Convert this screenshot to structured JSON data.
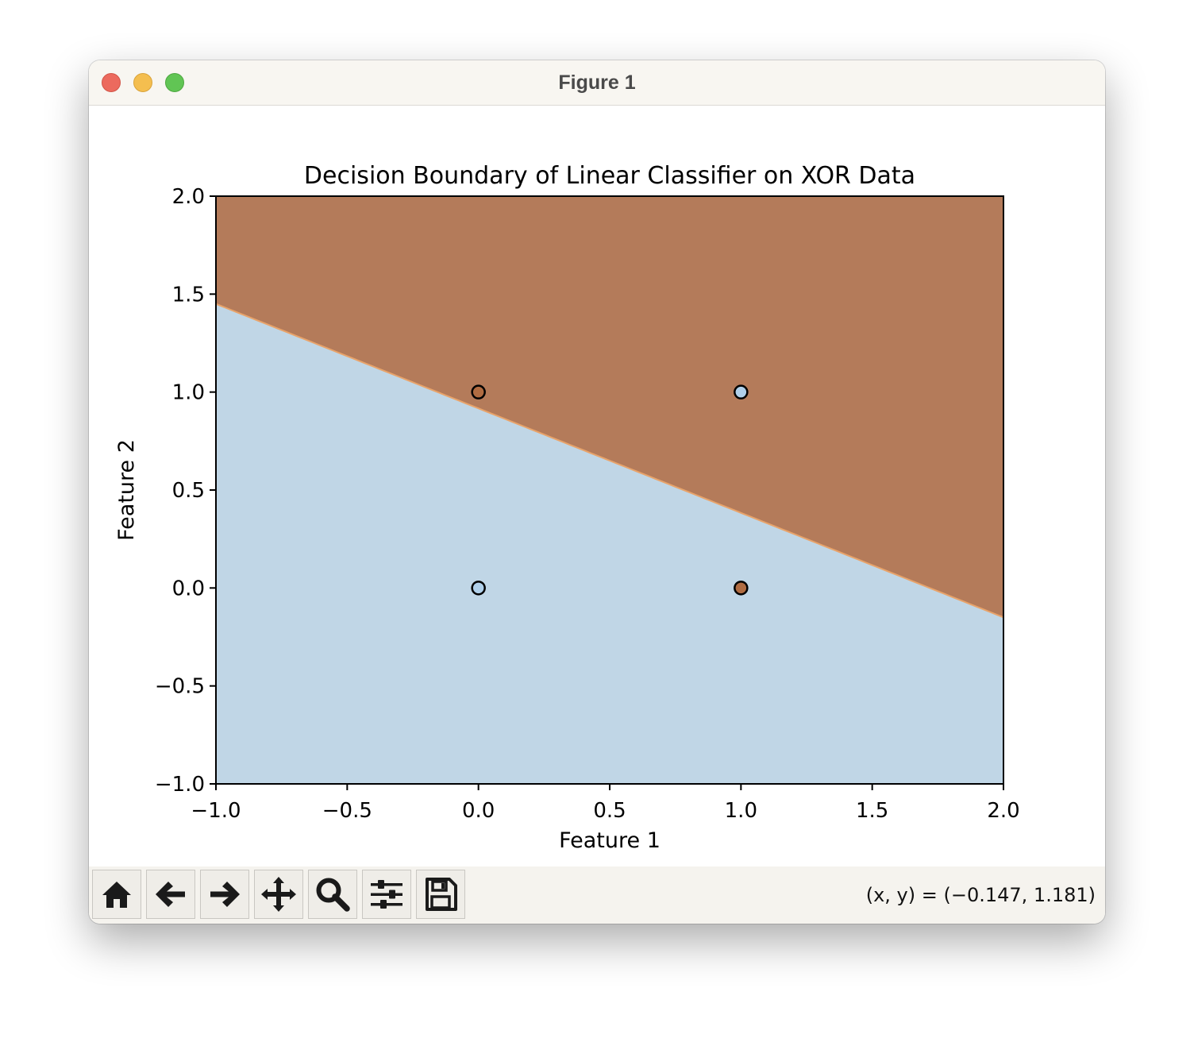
{
  "window": {
    "title": "Figure 1"
  },
  "toolbar": {
    "buttons": [
      {
        "name": "home-button",
        "icon": "home-icon"
      },
      {
        "name": "back-button",
        "icon": "arrow-left-icon"
      },
      {
        "name": "forward-button",
        "icon": "arrow-right-icon"
      },
      {
        "name": "pan-button",
        "icon": "move-icon"
      },
      {
        "name": "zoom-button",
        "icon": "magnifier-icon"
      },
      {
        "name": "configure-subplots-button",
        "icon": "sliders-icon"
      },
      {
        "name": "save-button",
        "icon": "floppy-disk-icon"
      }
    ],
    "coordinates": "(x, y) = (−0.147, 1.181)"
  },
  "colors": {
    "class_0_region": "#c0d6e6",
    "class_1_region": "#b47b5a",
    "class_0_point": "#b0d0ea",
    "class_1_point": "#b06c42",
    "boundary_edge": "#e8a36a"
  },
  "chart_data": {
    "type": "scatter",
    "title": "Decision Boundary of Linear Classifier on XOR Data",
    "xlabel": "Feature 1",
    "ylabel": "Feature 2",
    "xlim": [
      -1.0,
      2.0
    ],
    "ylim": [
      -1.0,
      2.0
    ],
    "xticks": [
      -1.0,
      -0.5,
      0.0,
      0.5,
      1.0,
      1.5,
      2.0
    ],
    "yticks": [
      -1.0,
      -0.5,
      0.0,
      0.5,
      1.0,
      1.5,
      2.0
    ],
    "xtick_labels": [
      "−1.0",
      "−0.5",
      "0.0",
      "0.5",
      "1.0",
      "1.5",
      "2.0"
    ],
    "ytick_labels": [
      "−1.0",
      "−0.5",
      "0.0",
      "0.5",
      "1.0",
      "1.5",
      "2.0"
    ],
    "grid": false,
    "decision_boundary": {
      "x": [
        -1.0,
        2.0
      ],
      "y": [
        1.45,
        -0.15
      ],
      "above_class": 1,
      "below_class": 0
    },
    "points": [
      {
        "x": 0,
        "y": 0,
        "class": 0
      },
      {
        "x": 0,
        "y": 1,
        "class": 1
      },
      {
        "x": 1,
        "y": 0,
        "class": 1
      },
      {
        "x": 1,
        "y": 1,
        "class": 0
      }
    ]
  }
}
